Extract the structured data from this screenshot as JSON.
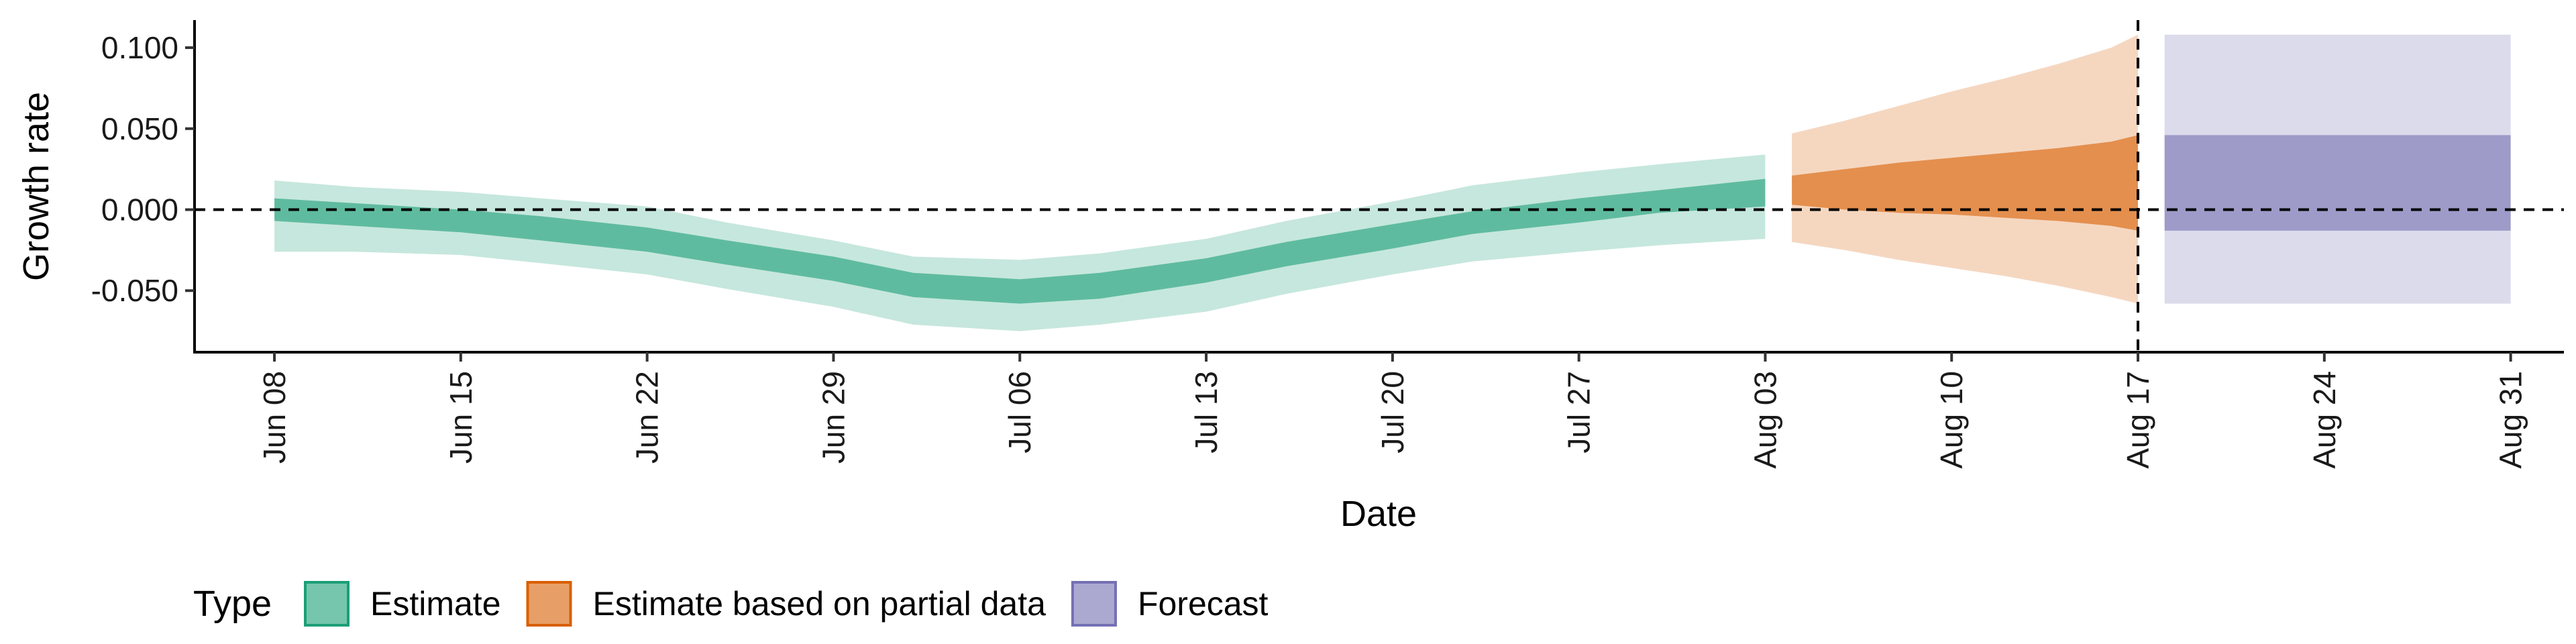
{
  "chart_data": {
    "type": "area",
    "xlabel": "Date",
    "ylabel": "Growth rate",
    "x_range": [
      "2020-06-05",
      "2020-09-02"
    ],
    "ylim": [
      -0.088,
      0.117
    ],
    "y_ticks": [
      0.1,
      0.05,
      0.0,
      -0.05
    ],
    "y_tick_labels": [
      "0.100",
      "0.050",
      "0.000",
      "-0.050"
    ],
    "x_ticks": [
      "2020-06-08",
      "2020-06-15",
      "2020-06-22",
      "2020-06-29",
      "2020-07-06",
      "2020-07-13",
      "2020-07-20",
      "2020-07-27",
      "2020-08-03",
      "2020-08-10",
      "2020-08-17",
      "2020-08-24",
      "2020-08-31"
    ],
    "x_tick_labels": [
      "Jun 08",
      "Jun 15",
      "Jun 22",
      "Jun 29",
      "Jul 06",
      "Jul 13",
      "Jul 20",
      "Jul 27",
      "Aug 03",
      "Aug 10",
      "Aug 17",
      "Aug 24",
      "Aug 31"
    ],
    "reference_lines": {
      "horizontal_y": 0.0,
      "vertical_x": "2020-08-17",
      "style": "dashed"
    },
    "grid": false,
    "legend": {
      "title": "Type",
      "position": "bottom-left",
      "entries": [
        {
          "label": "Estimate",
          "color": "#1b9e77"
        },
        {
          "label": "Estimate based on partial data",
          "color": "#d95f02"
        },
        {
          "label": "Forecast",
          "color": "#7570b3"
        }
      ]
    },
    "series": [
      {
        "name": "Estimate",
        "color": "#1b9e77",
        "x": [
          "2020-06-08",
          "2020-06-11",
          "2020-06-15",
          "2020-06-18",
          "2020-06-22",
          "2020-06-25",
          "2020-06-29",
          "2020-07-02",
          "2020-07-06",
          "2020-07-09",
          "2020-07-13",
          "2020-07-16",
          "2020-07-20",
          "2020-07-23",
          "2020-07-27",
          "2020-07-30",
          "2020-08-03"
        ],
        "lower_90": [
          -0.026,
          -0.026,
          -0.028,
          -0.033,
          -0.04,
          -0.049,
          -0.06,
          -0.071,
          -0.075,
          -0.071,
          -0.063,
          -0.052,
          -0.04,
          -0.032,
          -0.026,
          -0.022,
          -0.018
        ],
        "upper_90": [
          0.018,
          0.014,
          0.011,
          0.007,
          0.002,
          -0.008,
          -0.019,
          -0.029,
          -0.031,
          -0.027,
          -0.018,
          -0.007,
          0.005,
          0.015,
          0.023,
          0.028,
          0.034
        ],
        "lower_50": [
          -0.007,
          -0.01,
          -0.014,
          -0.019,
          -0.026,
          -0.034,
          -0.044,
          -0.054,
          -0.058,
          -0.055,
          -0.045,
          -0.035,
          -0.024,
          -0.015,
          -0.008,
          -0.002,
          0.002
        ],
        "upper_50": [
          0.007,
          0.004,
          0.0,
          -0.004,
          -0.011,
          -0.019,
          -0.029,
          -0.039,
          -0.043,
          -0.039,
          -0.03,
          -0.02,
          -0.009,
          -0.001,
          0.007,
          0.012,
          0.019
        ]
      },
      {
        "name": "Estimate based on partial data",
        "color": "#d95f02",
        "x": [
          "2020-08-04",
          "2020-08-06",
          "2020-08-08",
          "2020-08-10",
          "2020-08-12",
          "2020-08-14",
          "2020-08-16",
          "2020-08-17"
        ],
        "lower_90": [
          -0.02,
          -0.025,
          -0.031,
          -0.036,
          -0.041,
          -0.047,
          -0.054,
          -0.058
        ],
        "upper_90": [
          0.047,
          0.055,
          0.064,
          0.073,
          0.081,
          0.09,
          0.1,
          0.108
        ],
        "lower_50": [
          0.003,
          0.0,
          -0.002,
          -0.003,
          -0.005,
          -0.007,
          -0.01,
          -0.013
        ],
        "upper_50": [
          0.021,
          0.025,
          0.029,
          0.032,
          0.035,
          0.038,
          0.042,
          0.046
        ]
      },
      {
        "name": "Forecast",
        "color": "#7570b3",
        "x": [
          "2020-08-18",
          "2020-08-31"
        ],
        "lower_90": [
          -0.058,
          -0.058
        ],
        "upper_90": [
          0.108,
          0.108
        ],
        "lower_50": [
          -0.013,
          -0.013
        ],
        "upper_50": [
          0.046,
          0.046
        ]
      }
    ]
  }
}
